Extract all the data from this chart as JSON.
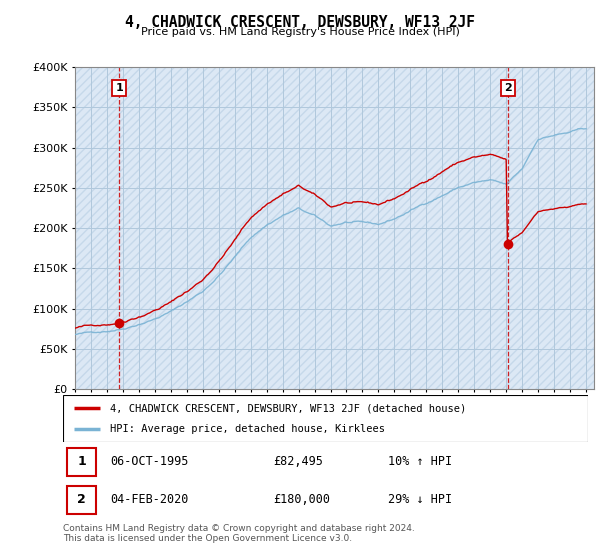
{
  "title": "4, CHADWICK CRESCENT, DEWSBURY, WF13 2JF",
  "subtitle": "Price paid vs. HM Land Registry's House Price Index (HPI)",
  "ylim": [
    0,
    400000
  ],
  "xlim_start": 1993.0,
  "xlim_end": 2025.5,
  "hpi_color": "#7ab3d4",
  "price_color": "#cc0000",
  "vline_color": "#cc0000",
  "bg_color": "#dce8f5",
  "hatch_color": "#c5d8ea",
  "grid_color": "#b0c8dc",
  "legend_label_price": "4, CHADWICK CRESCENT, DEWSBURY, WF13 2JF (detached house)",
  "legend_label_hpi": "HPI: Average price, detached house, Kirklees",
  "sale1_label": "1",
  "sale1_date": "06-OCT-1995",
  "sale1_price": "£82,495",
  "sale1_hpi": "10% ↑ HPI",
  "sale1_x": 1995.77,
  "sale1_y": 82495,
  "sale2_label": "2",
  "sale2_date": "04-FEB-2020",
  "sale2_price": "£180,000",
  "sale2_hpi": "29% ↓ HPI",
  "sale2_x": 2020.1,
  "sale2_y": 180000,
  "footer": "Contains HM Land Registry data © Crown copyright and database right 2024.\nThis data is licensed under the Open Government Licence v3.0."
}
